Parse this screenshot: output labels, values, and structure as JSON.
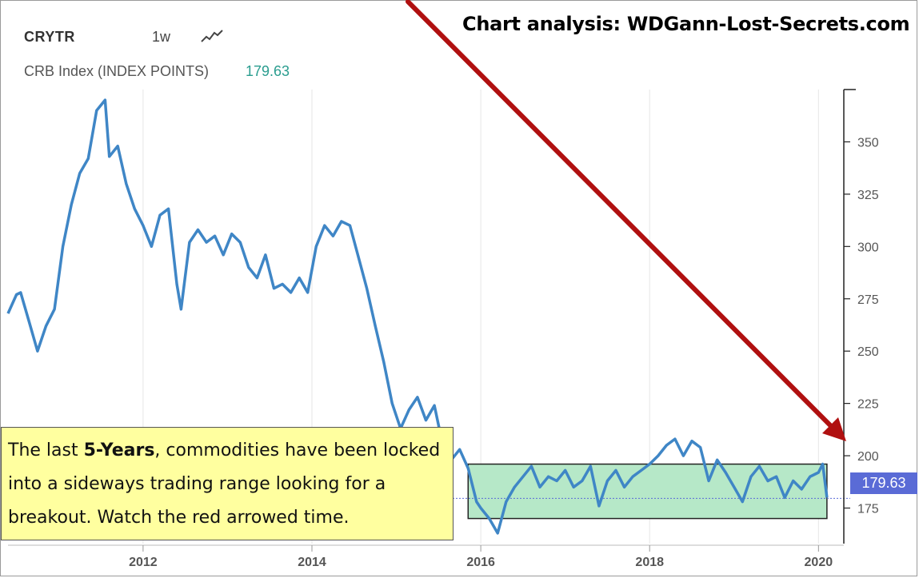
{
  "header": {
    "symbol": "CRYTR",
    "interval": "1w",
    "series_name": "CRB Index (INDEX POINTS)",
    "series_value": "179.63"
  },
  "analysis_title": "Chart analysis: WDGann-Lost-Secrets.com",
  "annotation": {
    "part1": "The last ",
    "bold": "5-Years",
    "part2": ", commodities have been locked into a sideways trading range looking for a breakout. Watch the red arrowed time."
  },
  "price_tag": "179.63",
  "colors": {
    "line": "#3f86c6",
    "range_fill": "#b6e8c8",
    "arrow": "#b01010",
    "price_tag": "#5a6bd6",
    "value_text": "#2a9d8f"
  },
  "chart_data": {
    "type": "line",
    "title": "CRB Index (INDEX POINTS)",
    "xlabel": "",
    "ylabel": "",
    "xlim": [
      2010.4,
      2020.3
    ],
    "ylim": [
      158,
      375
    ],
    "y_ticks": [
      350,
      325,
      300,
      275,
      250,
      225,
      200,
      175
    ],
    "x_ticks": [
      {
        "label": "2012",
        "value": 2012
      },
      {
        "label": "2014",
        "value": 2014
      },
      {
        "label": "2016",
        "value": 2016
      },
      {
        "label": "2018",
        "value": 2018
      },
      {
        "label": "2020",
        "value": 2020
      }
    ],
    "last_value": 179.63,
    "range_box": {
      "x_start": 2015.85,
      "x_end": 2020.1,
      "y_low": 170,
      "y_high": 196
    },
    "series": [
      {
        "name": "CRYTR",
        "x": [
          2010.4,
          2010.5,
          2010.55,
          2010.65,
          2010.75,
          2010.85,
          2010.95,
          2011.05,
          2011.15,
          2011.25,
          2011.35,
          2011.45,
          2011.55,
          2011.6,
          2011.7,
          2011.8,
          2011.9,
          2012.0,
          2012.1,
          2012.2,
          2012.3,
          2012.4,
          2012.45,
          2012.55,
          2012.65,
          2012.75,
          2012.85,
          2012.95,
          2013.05,
          2013.15,
          2013.25,
          2013.35,
          2013.45,
          2013.55,
          2013.65,
          2013.75,
          2013.85,
          2013.95,
          2014.05,
          2014.15,
          2014.25,
          2014.35,
          2014.45,
          2014.55,
          2014.65,
          2014.75,
          2014.85,
          2014.95,
          2015.05,
          2015.15,
          2015.25,
          2015.35,
          2015.45,
          2015.55,
          2015.65,
          2015.75,
          2015.85,
          2015.95,
          2016.0,
          2016.1,
          2016.2,
          2016.3,
          2016.4,
          2016.5,
          2016.6,
          2016.7,
          2016.8,
          2016.9,
          2017.0,
          2017.1,
          2017.2,
          2017.3,
          2017.4,
          2017.5,
          2017.6,
          2017.7,
          2017.8,
          2017.9,
          2018.0,
          2018.1,
          2018.2,
          2018.3,
          2018.4,
          2018.5,
          2018.6,
          2018.7,
          2018.8,
          2018.9,
          2019.0,
          2019.1,
          2019.2,
          2019.3,
          2019.4,
          2019.5,
          2019.6,
          2019.7,
          2019.8,
          2019.9,
          2020.0,
          2020.05,
          2020.1
        ],
        "values": [
          268,
          277,
          278,
          264,
          250,
          262,
          270,
          300,
          320,
          335,
          342,
          365,
          370,
          343,
          348,
          330,
          318,
          310,
          300,
          315,
          318,
          282,
          270,
          302,
          308,
          302,
          305,
          296,
          306,
          302,
          290,
          285,
          296,
          280,
          282,
          278,
          285,
          278,
          300,
          310,
          305,
          312,
          310,
          295,
          280,
          262,
          245,
          225,
          213,
          222,
          228,
          217,
          224,
          205,
          198,
          203,
          194,
          178,
          175,
          170,
          163,
          178,
          185,
          190,
          195,
          185,
          190,
          188,
          193,
          185,
          188,
          195,
          176,
          188,
          193,
          185,
          190,
          193,
          196,
          200,
          205,
          208,
          200,
          207,
          204,
          188,
          198,
          192,
          185,
          178,
          190,
          195,
          188,
          190,
          180,
          188,
          184,
          190,
          192,
          196,
          180
        ]
      }
    ]
  }
}
